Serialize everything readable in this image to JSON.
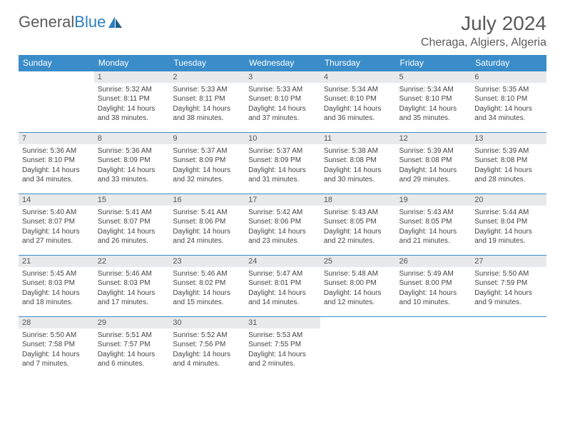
{
  "logo": {
    "text1": "General",
    "text2": "Blue"
  },
  "title": "July 2024",
  "location": "Cheraga, Algiers, Algeria",
  "colors": {
    "header_bg": "#3b8dc9",
    "header_text": "#ffffff",
    "daynum_bg": "#e8e9ea",
    "border": "#3b8dc9",
    "logo_gray": "#5a5a5a",
    "logo_blue": "#2b7fbf"
  },
  "weekdays": [
    "Sunday",
    "Monday",
    "Tuesday",
    "Wednesday",
    "Thursday",
    "Friday",
    "Saturday"
  ],
  "weeks": [
    [
      null,
      {
        "n": "1",
        "sr": "5:32 AM",
        "ss": "8:11 PM",
        "dl": "14 hours and 38 minutes."
      },
      {
        "n": "2",
        "sr": "5:33 AM",
        "ss": "8:11 PM",
        "dl": "14 hours and 38 minutes."
      },
      {
        "n": "3",
        "sr": "5:33 AM",
        "ss": "8:10 PM",
        "dl": "14 hours and 37 minutes."
      },
      {
        "n": "4",
        "sr": "5:34 AM",
        "ss": "8:10 PM",
        "dl": "14 hours and 36 minutes."
      },
      {
        "n": "5",
        "sr": "5:34 AM",
        "ss": "8:10 PM",
        "dl": "14 hours and 35 minutes."
      },
      {
        "n": "6",
        "sr": "5:35 AM",
        "ss": "8:10 PM",
        "dl": "14 hours and 34 minutes."
      }
    ],
    [
      {
        "n": "7",
        "sr": "5:36 AM",
        "ss": "8:10 PM",
        "dl": "14 hours and 34 minutes."
      },
      {
        "n": "8",
        "sr": "5:36 AM",
        "ss": "8:09 PM",
        "dl": "14 hours and 33 minutes."
      },
      {
        "n": "9",
        "sr": "5:37 AM",
        "ss": "8:09 PM",
        "dl": "14 hours and 32 minutes."
      },
      {
        "n": "10",
        "sr": "5:37 AM",
        "ss": "8:09 PM",
        "dl": "14 hours and 31 minutes."
      },
      {
        "n": "11",
        "sr": "5:38 AM",
        "ss": "8:08 PM",
        "dl": "14 hours and 30 minutes."
      },
      {
        "n": "12",
        "sr": "5:39 AM",
        "ss": "8:08 PM",
        "dl": "14 hours and 29 minutes."
      },
      {
        "n": "13",
        "sr": "5:39 AM",
        "ss": "8:08 PM",
        "dl": "14 hours and 28 minutes."
      }
    ],
    [
      {
        "n": "14",
        "sr": "5:40 AM",
        "ss": "8:07 PM",
        "dl": "14 hours and 27 minutes."
      },
      {
        "n": "15",
        "sr": "5:41 AM",
        "ss": "8:07 PM",
        "dl": "14 hours and 26 minutes."
      },
      {
        "n": "16",
        "sr": "5:41 AM",
        "ss": "8:06 PM",
        "dl": "14 hours and 24 minutes."
      },
      {
        "n": "17",
        "sr": "5:42 AM",
        "ss": "8:06 PM",
        "dl": "14 hours and 23 minutes."
      },
      {
        "n": "18",
        "sr": "5:43 AM",
        "ss": "8:05 PM",
        "dl": "14 hours and 22 minutes."
      },
      {
        "n": "19",
        "sr": "5:43 AM",
        "ss": "8:05 PM",
        "dl": "14 hours and 21 minutes."
      },
      {
        "n": "20",
        "sr": "5:44 AM",
        "ss": "8:04 PM",
        "dl": "14 hours and 19 minutes."
      }
    ],
    [
      {
        "n": "21",
        "sr": "5:45 AM",
        "ss": "8:03 PM",
        "dl": "14 hours and 18 minutes."
      },
      {
        "n": "22",
        "sr": "5:46 AM",
        "ss": "8:03 PM",
        "dl": "14 hours and 17 minutes."
      },
      {
        "n": "23",
        "sr": "5:46 AM",
        "ss": "8:02 PM",
        "dl": "14 hours and 15 minutes."
      },
      {
        "n": "24",
        "sr": "5:47 AM",
        "ss": "8:01 PM",
        "dl": "14 hours and 14 minutes."
      },
      {
        "n": "25",
        "sr": "5:48 AM",
        "ss": "8:00 PM",
        "dl": "14 hours and 12 minutes."
      },
      {
        "n": "26",
        "sr": "5:49 AM",
        "ss": "8:00 PM",
        "dl": "14 hours and 10 minutes."
      },
      {
        "n": "27",
        "sr": "5:50 AM",
        "ss": "7:59 PM",
        "dl": "14 hours and 9 minutes."
      }
    ],
    [
      {
        "n": "28",
        "sr": "5:50 AM",
        "ss": "7:58 PM",
        "dl": "14 hours and 7 minutes."
      },
      {
        "n": "29",
        "sr": "5:51 AM",
        "ss": "7:57 PM",
        "dl": "14 hours and 6 minutes."
      },
      {
        "n": "30",
        "sr": "5:52 AM",
        "ss": "7:56 PM",
        "dl": "14 hours and 4 minutes."
      },
      {
        "n": "31",
        "sr": "5:53 AM",
        "ss": "7:55 PM",
        "dl": "14 hours and 2 minutes."
      },
      null,
      null,
      null
    ]
  ],
  "labels": {
    "sunrise": "Sunrise:",
    "sunset": "Sunset:",
    "daylight": "Daylight:"
  }
}
